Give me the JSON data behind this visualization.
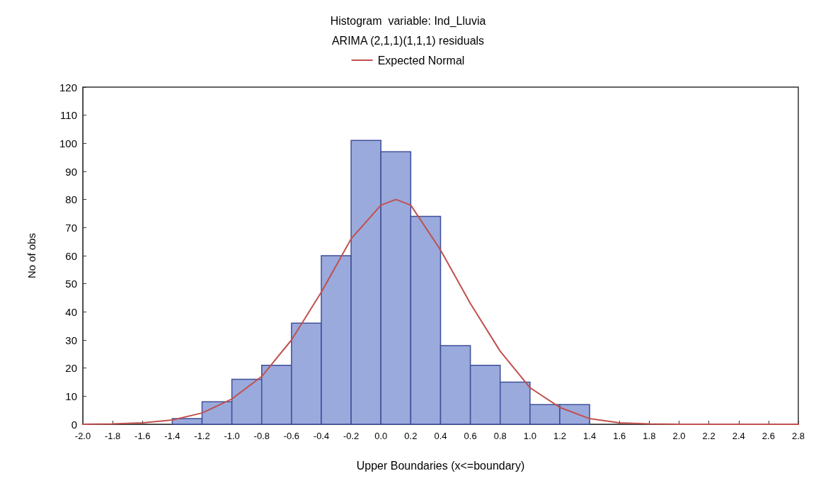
{
  "chart_data": {
    "type": "histogram",
    "title": "Histogram  variable: Ind_Lluvia",
    "subtitle": "ARIMA (2,1,1)(1,1,1) residuals",
    "xlabel": "Upper Boundaries (x<=boundary)",
    "ylabel": "No of obs",
    "bins": [
      -1.4,
      -1.2,
      -1.0,
      -0.8,
      -0.6,
      -0.4,
      -0.2,
      0,
      0.2,
      0.4,
      0.6,
      0.8,
      1.0,
      1.2,
      1.4
    ],
    "series": [
      {
        "color": "#9aaadc",
        "values": [
          2,
          8,
          16,
          21,
          36,
          60,
          101,
          97,
          74,
          28,
          21,
          15,
          7,
          7
        ]
      },
      {
        "type": "line",
        "name": "Expected Normal",
        "color": "#c0504d",
        "marker": "none",
        "x": [
          -2.0,
          -1.8,
          -1.6,
          -1.4,
          -1.2,
          -1.0,
          -0.8,
          -0.6,
          -0.4,
          -0.2,
          0.0,
          0.1,
          0.2,
          0.4,
          0.6,
          0.8,
          1.0,
          1.2,
          1.4,
          1.6,
          1.8,
          2.0,
          2.4,
          2.8
        ],
        "values": [
          0,
          0.1,
          0.5,
          1.5,
          4,
          9,
          17,
          30,
          47,
          66,
          78,
          80,
          78,
          62,
          43,
          26,
          13,
          6,
          2,
          0.5,
          0.1,
          0,
          0,
          0
        ]
      }
    ],
    "xlim": [
      -2.0,
      2.8
    ],
    "xticks": [
      {
        "value": -2.0,
        "label": "-2.0"
      },
      {
        "value": -1.8,
        "label": "-1.8"
      },
      {
        "value": -1.6,
        "label": "-1.6"
      },
      {
        "value": -1.4,
        "label": "-1.4"
      },
      {
        "value": -1.2,
        "label": "-1.2"
      },
      {
        "value": -1.0,
        "label": "-1.0"
      },
      {
        "value": -0.8,
        "label": "-0.8"
      },
      {
        "value": -0.6,
        "label": "-0.6"
      },
      {
        "value": -0.4,
        "label": "-0.4"
      },
      {
        "value": -0.2,
        "label": "-0.2"
      },
      {
        "value": 0,
        "label": "0.0"
      },
      {
        "value": 0.2,
        "label": "0.2"
      },
      {
        "value": 0.4,
        "label": "0.4"
      },
      {
        "value": 0.6,
        "label": "0.6"
      },
      {
        "value": 0.8,
        "label": "0.8"
      },
      {
        "value": 1.0,
        "label": "1.0"
      },
      {
        "value": 1.2,
        "label": "1.2"
      },
      {
        "value": 1.4,
        "label": "1.4"
      },
      {
        "value": 1.6,
        "label": "1.6"
      },
      {
        "value": 1.8,
        "label": "1.8"
      },
      {
        "value": 2.0,
        "label": "2.0"
      },
      {
        "value": 2.2,
        "label": "2.2"
      },
      {
        "value": 2.4,
        "label": "2.4"
      },
      {
        "value": 2.6,
        "label": "2.6"
      },
      {
        "value": 2.8,
        "label": "2.8"
      }
    ],
    "ylim": [
      0,
      120
    ],
    "yticks": [
      0,
      10,
      20,
      30,
      40,
      50,
      60,
      70,
      80,
      90,
      100,
      110,
      120
    ],
    "grid": false,
    "legend": "top"
  }
}
